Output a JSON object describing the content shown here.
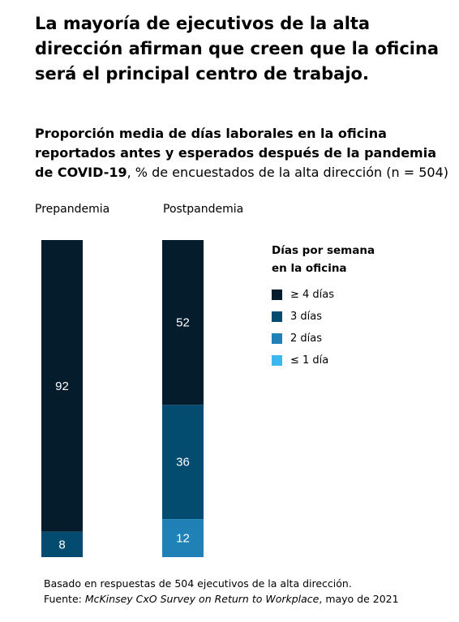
{
  "title": "La mayoría de ejecutivos de la alta dirección afirman que creen que la oficina será el principal centro de trabajo.",
  "subtitle": {
    "bold": "Proporción media de días laborales en la oficina reportados antes y esperados después de la pandemia de COVID-19",
    "normal": ", % de encuestados de la alta dirección (n = 504)"
  },
  "legend": {
    "title": "Días por semana en la oficina",
    "items": [
      {
        "label": "≥ 4 días",
        "color": "#051C2C"
      },
      {
        "label": "3 días",
        "color": "#034B6F"
      },
      {
        "label": "2 días",
        "color": "#1F81B5"
      },
      {
        "label": "≤ 1 día",
        "color": "#3CB8EE"
      }
    ]
  },
  "chart_data": {
    "type": "bar",
    "stacked": true,
    "categories": [
      "Prepandemia",
      "Postpandemia"
    ],
    "series": [
      {
        "name": "≥ 4 días",
        "color": "#051C2C",
        "values": [
          92,
          52
        ]
      },
      {
        "name": "3 días",
        "color": "#034B6F",
        "values": [
          8,
          36
        ]
      },
      {
        "name": "2 días",
        "color": "#1F81B5",
        "values": [
          0,
          12
        ]
      },
      {
        "name": "≤ 1 día",
        "color": "#3CB8EE",
        "values": [
          0,
          0
        ]
      }
    ],
    "ylim": [
      0,
      100
    ],
    "xlabel": "",
    "ylabel": ""
  },
  "footer": {
    "line1": "Basado en respuestas de 504 ejecutivos de la alta dirección.",
    "line2_prefix": "Fuente: ",
    "line2_italic": "McKinsey CxO Survey on Return to Workplace",
    "line2_suffix": ", mayo de 2021"
  }
}
